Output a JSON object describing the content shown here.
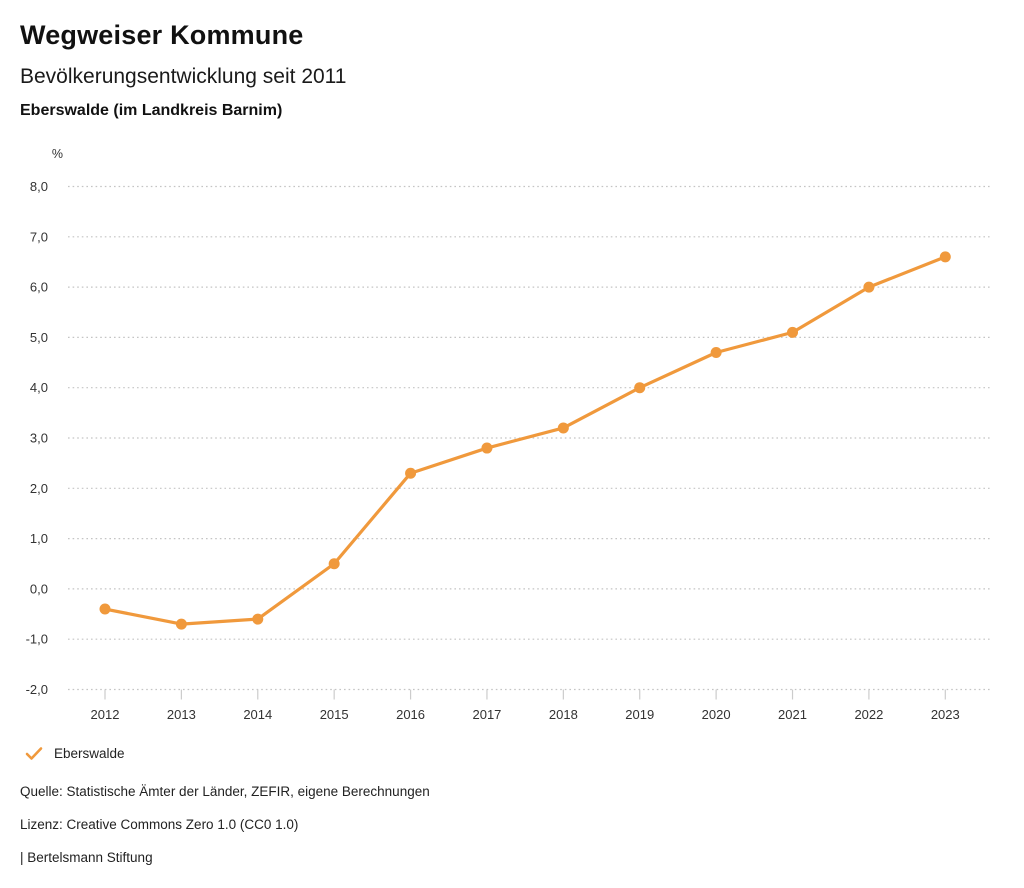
{
  "header": {
    "title": "Wegweiser Kommune",
    "subtitle": "Bevölkerungsentwicklung seit 2011",
    "region": "Eberswalde (im Landkreis Barnim)"
  },
  "chart_data": {
    "type": "line",
    "title": "Bevölkerungsentwicklung seit 2011",
    "region": "Eberswalde (im Landkreis Barnim)",
    "unit_label": "%",
    "categories": [
      "2012",
      "2013",
      "2014",
      "2015",
      "2016",
      "2017",
      "2018",
      "2019",
      "2020",
      "2021",
      "2022",
      "2023"
    ],
    "series": [
      {
        "name": "Eberswalde",
        "color": "#f0993c",
        "values": [
          -0.4,
          -0.7,
          -0.6,
          0.5,
          2.3,
          2.8,
          3.2,
          4.0,
          4.7,
          5.1,
          6.0,
          6.6
        ]
      }
    ],
    "ylim": [
      -2.0,
      8.0
    ],
    "ytick_step": 1.0,
    "ytick_labels": [
      "8,0",
      "7,0",
      "6,0",
      "5,0",
      "4,0",
      "3,0",
      "2,0",
      "1,0",
      "0,0",
      "-1,0",
      "-2,0"
    ],
    "ytick_values": [
      8,
      7,
      6,
      5,
      4,
      3,
      2,
      1,
      0,
      -1,
      -2
    ],
    "grid": "horizontal-dotted",
    "grid_color": "#c4c4c4",
    "tick_color": "#cccccc",
    "axis_label_color": "#333333",
    "legend_position": "bottom-left"
  },
  "legend": {
    "items": [
      {
        "label": "Eberswalde",
        "color": "#f0993c",
        "icon": "check-icon"
      }
    ]
  },
  "footer": {
    "source": "Quelle: Statistische Ämter der Länder, ZEFIR, eigene Berechnungen",
    "license": "Lizenz: Creative Commons Zero 1.0 (CC0 1.0)",
    "attribution": "| Bertelsmann Stiftung"
  }
}
